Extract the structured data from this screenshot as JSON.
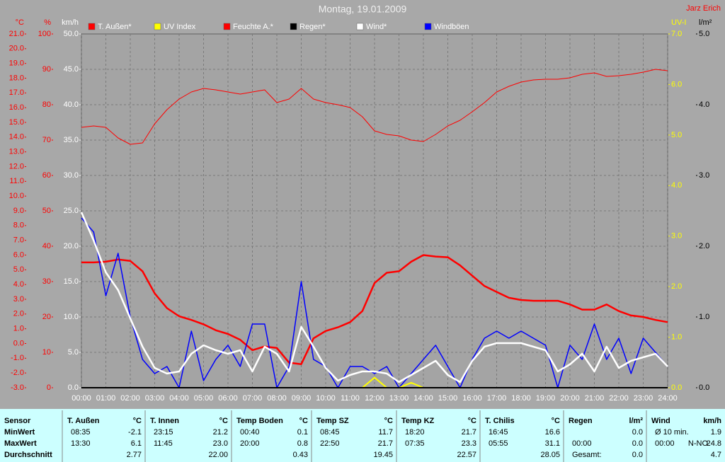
{
  "chart_data": {
    "type": "line",
    "title": "Montag, 19.01.2009",
    "author": "Jarz Erich",
    "x": [
      0,
      0.5,
      1,
      1.5,
      2,
      2.5,
      3,
      3.5,
      4,
      4.5,
      5,
      5.5,
      6,
      6.5,
      7,
      7.5,
      8,
      8.5,
      9,
      9.5,
      10,
      10.5,
      11,
      11.5,
      12,
      12.5,
      13,
      13.5,
      14,
      14.5,
      15,
      15.5,
      16,
      16.5,
      17,
      17.5,
      18,
      18.5,
      19,
      19.5,
      20,
      20.5,
      21,
      21.5,
      22,
      22.5,
      23,
      23.5,
      24
    ],
    "xlim": [
      0,
      24
    ],
    "xticks": [
      {
        "value": 0,
        "label": "00:00"
      },
      {
        "value": 1,
        "label": "01:00"
      },
      {
        "value": 2,
        "label": "02:00"
      },
      {
        "value": 3,
        "label": "03:00"
      },
      {
        "value": 4,
        "label": "04:00"
      },
      {
        "value": 5,
        "label": "05:00"
      },
      {
        "value": 6,
        "label": "06:00"
      },
      {
        "value": 7,
        "label": "07:00"
      },
      {
        "value": 8,
        "label": "08:00"
      },
      {
        "value": 9,
        "label": "09:00"
      },
      {
        "value": 10,
        "label": "10:00"
      },
      {
        "value": 11,
        "label": "11:00"
      },
      {
        "value": 12,
        "label": "12:00"
      },
      {
        "value": 13,
        "label": "13:00"
      },
      {
        "value": 14,
        "label": "14:00"
      },
      {
        "value": 15,
        "label": "15:00"
      },
      {
        "value": 16,
        "label": "16:00"
      },
      {
        "value": 17,
        "label": "17:00"
      },
      {
        "value": 18,
        "label": "18:00"
      },
      {
        "value": 19,
        "label": "19:00"
      },
      {
        "value": 20,
        "label": "20:00"
      },
      {
        "value": 21,
        "label": "21:00"
      },
      {
        "value": 22,
        "label": "22:00"
      },
      {
        "value": 23,
        "label": "23:00"
      },
      {
        "value": 24,
        "label": "24:00"
      }
    ],
    "grid": true,
    "grid_axis": "wind",
    "axes": {
      "temp": {
        "label": "°C",
        "side": "left",
        "color": "#ff0000",
        "lim": [
          -3,
          21
        ],
        "ticks": [
          {
            "value": -3,
            "label": "-3.0"
          },
          {
            "value": -2,
            "label": "-2.0"
          },
          {
            "value": -1,
            "label": "-1.0"
          },
          {
            "value": 0,
            "label": "0.0"
          },
          {
            "value": 1,
            "label": "1.0"
          },
          {
            "value": 2,
            "label": "2.0"
          },
          {
            "value": 3,
            "label": "3.0"
          },
          {
            "value": 4,
            "label": "4.0"
          },
          {
            "value": 5,
            "label": "5.0"
          },
          {
            "value": 6,
            "label": "6.0"
          },
          {
            "value": 7,
            "label": "7.0"
          },
          {
            "value": 8,
            "label": "8.0"
          },
          {
            "value": 9,
            "label": "9.0"
          },
          {
            "value": 10,
            "label": "10.0"
          },
          {
            "value": 11,
            "label": "11.0"
          },
          {
            "value": 12,
            "label": "12.0"
          },
          {
            "value": 13,
            "label": "13.0"
          },
          {
            "value": 14,
            "label": "14.0"
          },
          {
            "value": 15,
            "label": "15.0"
          },
          {
            "value": 16,
            "label": "16.0"
          },
          {
            "value": 17,
            "label": "17.0"
          },
          {
            "value": 18,
            "label": "18.0"
          },
          {
            "value": 19,
            "label": "19.0"
          },
          {
            "value": 20,
            "label": "20.0"
          },
          {
            "value": 21,
            "label": "21.0"
          }
        ]
      },
      "hum": {
        "label": "%",
        "side": "left",
        "color": "#ff0000",
        "lim": [
          0,
          100
        ],
        "ticks": [
          0,
          10,
          20,
          30,
          40,
          50,
          60,
          70,
          80,
          90,
          100
        ]
      },
      "wind": {
        "label": "km/h",
        "side": "left",
        "color": "#ffffff",
        "lim": [
          0,
          50
        ],
        "ticks": [
          {
            "value": 0,
            "label": "0.0"
          },
          {
            "value": 5,
            "label": "5.0"
          },
          {
            "value": 10,
            "label": "10.0"
          },
          {
            "value": 15,
            "label": "15.0"
          },
          {
            "value": 20,
            "label": "20.0"
          },
          {
            "value": 25,
            "label": "25.0"
          },
          {
            "value": 30,
            "label": "30.0"
          },
          {
            "value": 35,
            "label": "35.0"
          },
          {
            "value": 40,
            "label": "40.0"
          },
          {
            "value": 45,
            "label": "45.0"
          },
          {
            "value": 50,
            "label": "50.0"
          }
        ]
      },
      "uv": {
        "label": "UV-I",
        "side": "right",
        "color": "#ffff00",
        "lim": [
          0,
          7
        ],
        "ticks": [
          {
            "value": 0,
            "label": "0.0"
          },
          {
            "value": 1,
            "label": "1.0"
          },
          {
            "value": 2,
            "label": "2.0"
          },
          {
            "value": 3,
            "label": "3.0"
          },
          {
            "value": 4,
            "label": "4.0"
          },
          {
            "value": 5,
            "label": "5.0"
          },
          {
            "value": 6,
            "label": "6.0"
          },
          {
            "value": 7,
            "label": "7.0"
          }
        ]
      },
      "rain": {
        "label": "l/m²",
        "side": "right",
        "color": "#000000",
        "lim": [
          0,
          5
        ],
        "ticks": [
          {
            "value": 0,
            "label": "0.0"
          },
          {
            "value": 1,
            "label": "1.0"
          },
          {
            "value": 2,
            "label": "2.0"
          },
          {
            "value": 3,
            "label": "3.0"
          },
          {
            "value": 4,
            "label": "4.0"
          },
          {
            "value": 5,
            "label": "5.0"
          }
        ]
      }
    },
    "series": [
      {
        "name": "T. Außen*",
        "color": "#ff0000",
        "axis": "temp",
        "width": 2.5,
        "values": [
          5.5,
          5.5,
          5.55,
          5.7,
          5.6,
          4.9,
          3.4,
          2.4,
          1.85,
          1.6,
          1.3,
          0.9,
          0.65,
          0.25,
          -0.45,
          -0.2,
          -0.3,
          -1.3,
          -1.4,
          0.35,
          0.85,
          1.1,
          1.45,
          2.2,
          4.1,
          4.8,
          4.9,
          5.55,
          6.0,
          5.9,
          5.85,
          5.3,
          4.6,
          3.9,
          3.5,
          3.1,
          2.95,
          2.9,
          2.9,
          2.9,
          2.65,
          2.3,
          2.3,
          2.65,
          2.2,
          1.9,
          1.8,
          1.6,
          1.45
        ]
      },
      {
        "name": "UV Index",
        "color": "#ffff00",
        "axis": "uv",
        "width": 2,
        "values": [
          0,
          0,
          0,
          0,
          0,
          0,
          0,
          0,
          0,
          0,
          0,
          0,
          0,
          0,
          0,
          0,
          0,
          0,
          0,
          0,
          0,
          0,
          0,
          0,
          0.2,
          0,
          0,
          0.1,
          0,
          0,
          0,
          0,
          0,
          0,
          0,
          0,
          0,
          0,
          0,
          0,
          0,
          0,
          0,
          0,
          0,
          0,
          0,
          0,
          0
        ]
      },
      {
        "name": "Feuchte A.*",
        "color": "#ff0000",
        "axis": "hum",
        "width": 1,
        "values": [
          73.6,
          74,
          73.6,
          70.6,
          68.8,
          69.2,
          74.6,
          78.6,
          81.6,
          83.6,
          84.6,
          84.2,
          83.6,
          83,
          83.6,
          84.2,
          80.6,
          81.6,
          84.6,
          81.6,
          80.6,
          80,
          79.2,
          76.6,
          72.6,
          71.6,
          71.2,
          70,
          69.6,
          71.6,
          74,
          75.6,
          78,
          80.6,
          83.6,
          85.2,
          86.4,
          87,
          87.2,
          87.2,
          87.6,
          88.6,
          89,
          88,
          88.2,
          88.6,
          89.2,
          90,
          89.6
        ]
      },
      {
        "name": "Regen*",
        "color": "#000000",
        "axis": "rain",
        "width": 2,
        "values": [
          0,
          0,
          0,
          0,
          0,
          0,
          0,
          0,
          0,
          0,
          0,
          0,
          0,
          0,
          0,
          0,
          0,
          0,
          0,
          0,
          0,
          0,
          0,
          0,
          0,
          0,
          0,
          0,
          0,
          0,
          0,
          0,
          0,
          0,
          0,
          0,
          0,
          0,
          0,
          0,
          0,
          0,
          0,
          0,
          0,
          0,
          0,
          0,
          0
        ]
      },
      {
        "name": "Wind*",
        "color": "#ffffff",
        "axis": "wind",
        "width": 2.5,
        "values": [
          24.8,
          20.8,
          16.3,
          13.8,
          9.8,
          5.8,
          2.8,
          2.0,
          2.3,
          4.8,
          6.0,
          5.3,
          4.8,
          5.3,
          2.3,
          5.8,
          4.8,
          2.3,
          8.6,
          5.8,
          2.8,
          1.0,
          1.8,
          2.3,
          2.3,
          2.0,
          0.8,
          1.8,
          2.8,
          3.8,
          1.8,
          0.8,
          3.8,
          5.8,
          6.3,
          6.3,
          6.3,
          5.8,
          5.3,
          2.3,
          3.3,
          4.8,
          2.3,
          5.8,
          2.8,
          3.8,
          4.3,
          4.8,
          3.0
        ]
      },
      {
        "name": "Windböen",
        "color": "#0000ff",
        "axis": "wind",
        "width": 1.5,
        "values": [
          24,
          22,
          13,
          19,
          10,
          4,
          2,
          3,
          0,
          8,
          1,
          4,
          6,
          3,
          9,
          9,
          0,
          3,
          15,
          4,
          3,
          0,
          3,
          3,
          2,
          3,
          0,
          2,
          4,
          6,
          3,
          0,
          4,
          7,
          8,
          7,
          8,
          7,
          6,
          0,
          6,
          4,
          9,
          4,
          7,
          2,
          7,
          5,
          3
        ]
      }
    ],
    "draw_order": [
      2,
      0,
      5,
      4,
      1,
      3
    ]
  },
  "table": {
    "header": "Sensor",
    "row_labels": [
      "MinWert",
      "MaxWert",
      "Durchschnitt"
    ],
    "columns": [
      {
        "name": "T. Außen",
        "unit": "°C",
        "rows": [
          [
            "08:35",
            "-2.1"
          ],
          [
            "13:30",
            "6.1"
          ],
          [
            "2.77"
          ]
        ]
      },
      {
        "name": "T. Innen",
        "unit": "°C",
        "rows": [
          [
            "23:15",
            "21.2"
          ],
          [
            "11:45",
            "23.0"
          ],
          [
            "22.00"
          ]
        ]
      },
      {
        "name": "Temp Boden",
        "unit": "°C",
        "rows": [
          [
            "00:40",
            "0.1"
          ],
          [
            "20:00",
            "0.8"
          ],
          [
            "0.43"
          ]
        ]
      },
      {
        "name": "Temp SZ",
        "unit": "°C",
        "rows": [
          [
            "08:45",
            "11.7"
          ],
          [
            "22:50",
            "21.7"
          ],
          [
            "19.45"
          ]
        ]
      },
      {
        "name": "Temp KZ",
        "unit": "°C",
        "rows": [
          [
            "18:20",
            "21.7"
          ],
          [
            "07:35",
            "23.3"
          ],
          [
            "22.57"
          ]
        ]
      },
      {
        "name": "T. Chilis",
        "unit": "°C",
        "rows": [
          [
            "16:45",
            "16.6"
          ],
          [
            "05:55",
            "31.1"
          ],
          [
            "28.05"
          ]
        ]
      },
      {
        "name": "Regen",
        "unit": "l/m²",
        "rows": [
          [
            "0.0"
          ],
          [
            "00:00",
            "0.0"
          ],
          [
            "Gesamt:",
            "0.0"
          ]
        ]
      },
      {
        "name": "Wind",
        "unit": "km/h",
        "rows": [
          [
            "Ø 10 min.",
            "1.9"
          ],
          [
            "00:00",
            "N-NO",
            "24.8"
          ],
          [
            "4.7"
          ]
        ]
      }
    ]
  }
}
